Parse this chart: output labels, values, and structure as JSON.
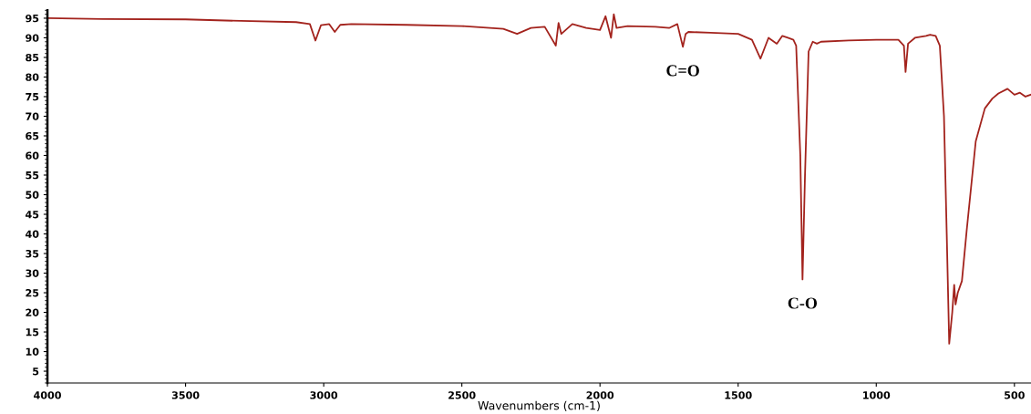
{
  "chart_data": {
    "type": "line",
    "xlabel": "Wavenumbers (cm-1)",
    "x": [
      4000,
      3800,
      3500,
      3300,
      3100,
      3050,
      3030,
      3010,
      2980,
      2960,
      2940,
      2900,
      2700,
      2500,
      2350,
      2300,
      2250,
      2200,
      2160,
      2150,
      2140,
      2100,
      2050,
      2000,
      1980,
      1960,
      1950,
      1940,
      1900,
      1800,
      1750,
      1720,
      1700,
      1690,
      1680,
      1600,
      1500,
      1450,
      1419,
      1390,
      1360,
      1340,
      1320,
      1300,
      1290,
      1275,
      1267,
      1258,
      1245,
      1230,
      1215,
      1200,
      1100,
      1000,
      920,
      900,
      894,
      885,
      860,
      820,
      805,
      785,
      770,
      755,
      745,
      736,
      725,
      718,
      713,
      705,
      690,
      673,
      640,
      607,
      580,
      558,
      525,
      500,
      480,
      460,
      440
    ],
    "series": [
      {
        "color": "#a3231d",
        "values": [
          95,
          94.8,
          94.7,
          94.3,
          94,
          93.5,
          89.3,
          93.2,
          93.5,
          91.5,
          93.3,
          93.5,
          93.3,
          93,
          92.3,
          91,
          92.5,
          92.8,
          88,
          93.8,
          91,
          93.5,
          92.5,
          92,
          95.5,
          90,
          96,
          92.5,
          93,
          92.8,
          92.5,
          93.5,
          87.7,
          91,
          91.5,
          91.3,
          91,
          89.5,
          84.7,
          90,
          88.5,
          90.5,
          90,
          89.5,
          88,
          60,
          28.4,
          55,
          86.5,
          89,
          88.5,
          89,
          89.3,
          89.5,
          89.5,
          88,
          81.3,
          88.5,
          90,
          90.5,
          90.8,
          90.5,
          88,
          70,
          40,
          12,
          20,
          27,
          22,
          25,
          28,
          40.7,
          63.6,
          72,
          74.5,
          75.8,
          77,
          75.5,
          76,
          75,
          75.5
        ]
      }
    ],
    "xlim": [
      4000,
      440
    ],
    "ylim": [
      2,
      97
    ],
    "xticks": [
      4000,
      3500,
      3000,
      2500,
      2000,
      1500,
      1000,
      500
    ],
    "yticks": [
      5,
      10,
      15,
      20,
      25,
      30,
      35,
      40,
      45,
      50,
      55,
      60,
      65,
      70,
      75,
      80,
      85,
      90,
      95
    ],
    "grid": false,
    "legend": false,
    "marker": "none",
    "line_style": "solid",
    "annotations": [
      {
        "text": "C=O",
        "x": 1700,
        "y": 87.7
      },
      {
        "text": "C-O",
        "x": 1267,
        "y": 28.4
      }
    ]
  }
}
